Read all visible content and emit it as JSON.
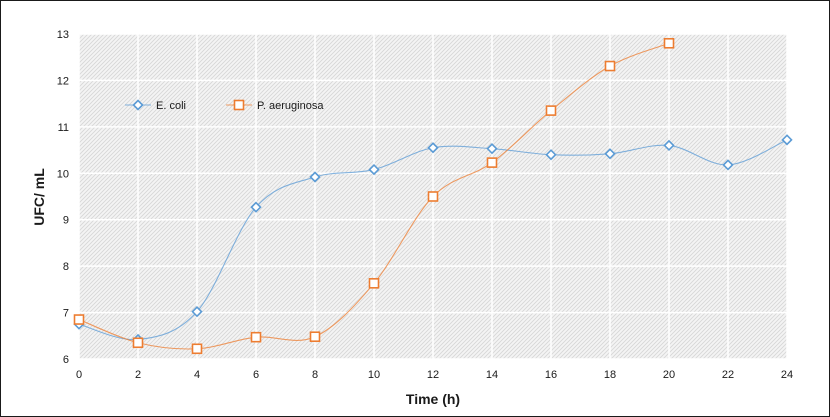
{
  "chart_data": {
    "type": "line",
    "title": "",
    "xlabel": "Time (h)",
    "ylabel": "UFC/ mL",
    "xlim": [
      0,
      24
    ],
    "ylim": [
      6,
      13
    ],
    "xticks": [
      0,
      2,
      4,
      6,
      8,
      10,
      12,
      14,
      16,
      18,
      20,
      22,
      24
    ],
    "yticks": [
      6,
      7,
      8,
      9,
      10,
      11,
      12,
      13
    ],
    "grid": true,
    "legend_position": "top-left",
    "series": [
      {
        "name": "E. coli",
        "color": "#5b9bd5",
        "marker": "diamond",
        "x": [
          0,
          2,
          4,
          6,
          8,
          10,
          12,
          14,
          16,
          18,
          20,
          22,
          24
        ],
        "values": [
          6.75,
          6.42,
          7.02,
          9.27,
          9.92,
          10.08,
          10.55,
          10.53,
          10.4,
          10.42,
          10.6,
          10.18,
          10.72
        ]
      },
      {
        "name": "P. aeruginosa",
        "color": "#ed7d31",
        "marker": "square",
        "x": [
          0,
          2,
          4,
          6,
          8,
          10,
          12,
          14,
          16,
          18,
          20
        ],
        "values": [
          6.85,
          6.35,
          6.22,
          6.47,
          6.48,
          7.63,
          9.5,
          10.23,
          11.35,
          12.31,
          12.8
        ]
      }
    ]
  }
}
